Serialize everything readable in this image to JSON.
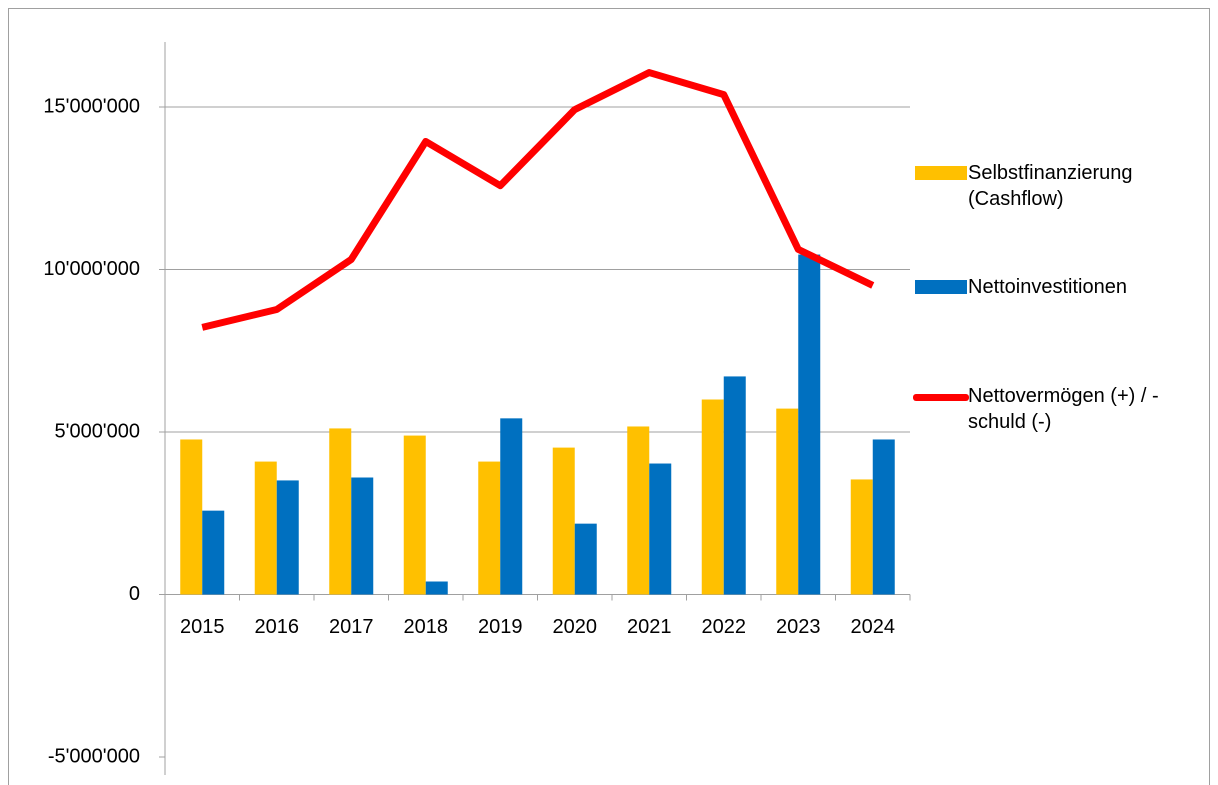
{
  "chart_data": {
    "type": "bar_line",
    "categories": [
      "2015",
      "2016",
      "2017",
      "2018",
      "2019",
      "2020",
      "2021",
      "2022",
      "2023",
      "2024"
    ],
    "series": [
      {
        "name": "Selbstfinanzierung (Cashflow)",
        "type": "bar",
        "color": "#ffc000",
        "values": [
          4770000,
          4090000,
          5110000,
          4890000,
          4090000,
          4520000,
          5170000,
          6000000,
          5720000,
          3540000
        ]
      },
      {
        "name": "Nettoinvestitionen",
        "type": "bar",
        "color": "#0070c0",
        "values": [
          2580000,
          3510000,
          3600000,
          400000,
          5420000,
          2180000,
          4030000,
          6710000,
          10460000,
          4770000
        ]
      },
      {
        "name": "Nettovermögen (+) / -schuld (-)",
        "type": "line",
        "color": "#ff0000",
        "values": [
          8220000,
          8770000,
          10310000,
          13940000,
          12580000,
          14920000,
          16060000,
          15380000,
          10620000,
          9510000
        ]
      }
    ],
    "ylim": [
      -5000000,
      17000000
    ],
    "yticks": [
      {
        "value": -5000000,
        "label": "-5'000'000"
      },
      0,
      {
        "value": 5000000,
        "label": "5'000'000"
      },
      {
        "value": 10000000,
        "label": "10'000'000"
      },
      {
        "value": 15000000,
        "label": "15'000'000"
      }
    ],
    "grid": true,
    "legend": "right"
  }
}
